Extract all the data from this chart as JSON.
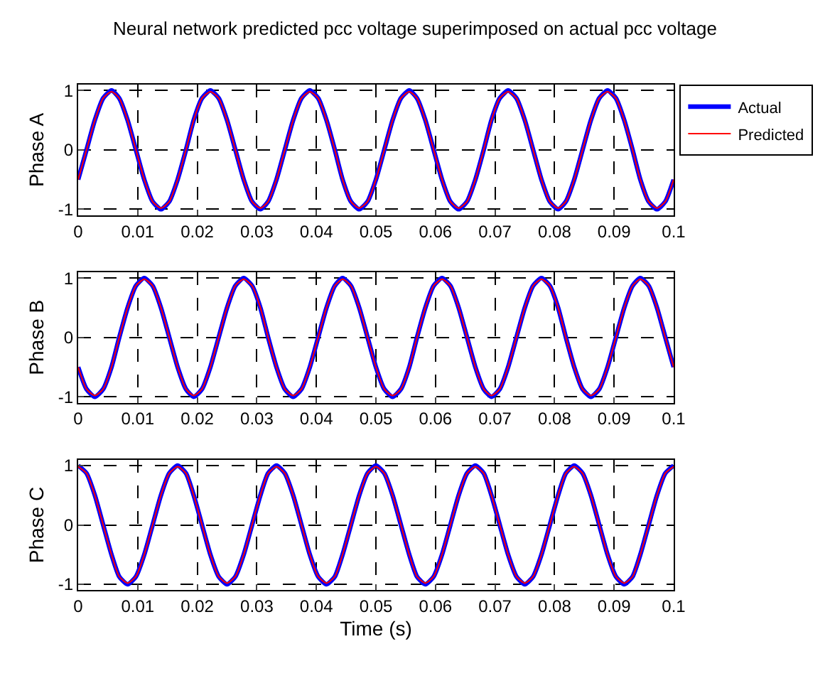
{
  "chart_data": [
    {
      "type": "line",
      "title": "Neural network predicted pcc voltage superimposed on actual pcc voltage",
      "ylabel": "Phase A",
      "xlim": [
        0,
        0.1
      ],
      "xticks": [
        0,
        0.01,
        0.02,
        0.03,
        0.04,
        0.05,
        0.06,
        0.07,
        0.08,
        0.09,
        0.1
      ],
      "ylim": [
        -1.1,
        1.1
      ],
      "yticks": [
        -1,
        0,
        1
      ],
      "grid": true,
      "legend": "top right",
      "x": [
        0,
        0.0014,
        0.0028,
        0.0042,
        0.0056,
        0.0069,
        0.0083,
        0.0097,
        0.0111,
        0.0125,
        0.0139,
        0.0153,
        0.0167,
        0.0181,
        0.0194,
        0.0208,
        0.0222,
        0.0236,
        0.025,
        0.0264,
        0.0278,
        0.0292,
        0.0306,
        0.0319,
        0.0333,
        0.0347,
        0.0361,
        0.0375,
        0.0389,
        0.0403,
        0.0417,
        0.0431,
        0.0444,
        0.0458,
        0.0472,
        0.0486,
        0.05,
        0.0514,
        0.0528,
        0.0542,
        0.0556,
        0.0569,
        0.0583,
        0.0597,
        0.0611,
        0.0625,
        0.0639,
        0.0653,
        0.0667,
        0.0681,
        0.0694,
        0.0708,
        0.0722,
        0.0736,
        0.075,
        0.0764,
        0.0778,
        0.0792,
        0.0806,
        0.0819,
        0.0833,
        0.0847,
        0.0861,
        0.0875,
        0.0889,
        0.0903,
        0.0917,
        0.0931,
        0.0944,
        0.0958,
        0.0972,
        0.0986,
        0.1
      ],
      "series": [
        {
          "name": "Actual",
          "color": "#0000ff",
          "values": [
            -0.5,
            0,
            0.5,
            0.87,
            1,
            0.87,
            0.5,
            0,
            -0.5,
            -0.87,
            -1,
            -0.87,
            -0.5,
            0,
            0.5,
            0.87,
            1,
            0.87,
            0.5,
            0,
            -0.5,
            -0.87,
            -1,
            -0.87,
            -0.5,
            0,
            0.5,
            0.87,
            1,
            0.87,
            0.5,
            0,
            -0.5,
            -0.87,
            -1,
            -0.87,
            -0.5,
            0,
            0.5,
            0.87,
            1,
            0.87,
            0.5,
            0,
            -0.5,
            -0.87,
            -1,
            -0.87,
            -0.5,
            0,
            0.5,
            0.87,
            1,
            0.87,
            0.5,
            0,
            -0.5,
            -0.87,
            -1,
            -0.87,
            -0.5,
            0,
            0.5,
            0.87,
            1,
            0.87,
            0.5,
            0,
            -0.5,
            -0.87,
            -1,
            -0.87,
            -0.5
          ]
        },
        {
          "name": "Predicted",
          "color": "#ff0000",
          "values": [
            -0.5,
            0,
            0.5,
            0.87,
            0.98,
            0.87,
            0.5,
            0,
            -0.5,
            -0.87,
            -0.98,
            -0.87,
            -0.5,
            0,
            0.5,
            0.87,
            0.98,
            0.87,
            0.5,
            0,
            -0.5,
            -0.87,
            -0.98,
            -0.87,
            -0.5,
            0,
            0.5,
            0.87,
            0.98,
            0.87,
            0.5,
            0,
            -0.5,
            -0.87,
            -0.98,
            -0.87,
            -0.5,
            0,
            0.5,
            0.87,
            0.98,
            0.87,
            0.5,
            0,
            -0.5,
            -0.87,
            -0.98,
            -0.87,
            -0.5,
            0,
            0.5,
            0.87,
            0.98,
            0.87,
            0.5,
            0,
            -0.5,
            -0.87,
            -0.98,
            -0.87,
            -0.5,
            0,
            0.5,
            0.87,
            0.98,
            0.87,
            0.5,
            0,
            -0.5,
            -0.87,
            -0.98,
            -0.87,
            -0.5
          ]
        }
      ]
    },
    {
      "type": "line",
      "ylabel": "Phase B",
      "xlim": [
        0,
        0.1
      ],
      "xticks": [
        0,
        0.01,
        0.02,
        0.03,
        0.04,
        0.05,
        0.06,
        0.07,
        0.08,
        0.09,
        0.1
      ],
      "ylim": [
        -1.1,
        1.1
      ],
      "yticks": [
        -1,
        0,
        1
      ],
      "grid": true,
      "x": [
        0,
        0.0014,
        0.0028,
        0.0042,
        0.0056,
        0.0069,
        0.0083,
        0.0097,
        0.0111,
        0.0125,
        0.0139,
        0.0153,
        0.0167,
        0.0181,
        0.0194,
        0.0208,
        0.0222,
        0.0236,
        0.025,
        0.0264,
        0.0278,
        0.0292,
        0.0306,
        0.0319,
        0.0333,
        0.0347,
        0.0361,
        0.0375,
        0.0389,
        0.0403,
        0.0417,
        0.0431,
        0.0444,
        0.0458,
        0.0472,
        0.0486,
        0.05,
        0.0514,
        0.0528,
        0.0542,
        0.0556,
        0.0569,
        0.0583,
        0.0597,
        0.0611,
        0.0625,
        0.0639,
        0.0653,
        0.0667,
        0.0681,
        0.0694,
        0.0708,
        0.0722,
        0.0736,
        0.075,
        0.0764,
        0.0778,
        0.0792,
        0.0806,
        0.0819,
        0.0833,
        0.0847,
        0.0861,
        0.0875,
        0.0889,
        0.0903,
        0.0917,
        0.0931,
        0.0944,
        0.0958,
        0.0972,
        0.0986,
        0.1
      ],
      "series": [
        {
          "color": "#0000ff",
          "values": [
            -0.5,
            -0.87,
            -1,
            -0.87,
            -0.5,
            0,
            0.5,
            0.87,
            1,
            0.87,
            0.5,
            0,
            -0.5,
            -0.87,
            -1,
            -0.87,
            -0.5,
            0,
            0.5,
            0.87,
            1,
            0.87,
            0.5,
            0,
            -0.5,
            -0.87,
            -1,
            -0.87,
            -0.5,
            0,
            0.5,
            0.87,
            1,
            0.87,
            0.5,
            0,
            -0.5,
            -0.87,
            -1,
            -0.87,
            -0.5,
            0,
            0.5,
            0.87,
            1,
            0.87,
            0.5,
            0,
            -0.5,
            -0.87,
            -1,
            -0.87,
            -0.5,
            0,
            0.5,
            0.87,
            1,
            0.87,
            0.5,
            0,
            -0.5,
            -0.87,
            -1,
            -0.87,
            -0.5,
            0,
            0.5,
            0.87,
            1,
            0.87,
            0.5,
            0,
            -0.5
          ]
        },
        {
          "color": "#ff0000",
          "values": [
            -0.5,
            -0.87,
            -0.98,
            -0.87,
            -0.5,
            0,
            0.5,
            0.87,
            0.98,
            0.87,
            0.5,
            0,
            -0.5,
            -0.87,
            -0.98,
            -0.87,
            -0.5,
            0,
            0.5,
            0.87,
            0.98,
            0.87,
            0.5,
            0,
            -0.5,
            -0.87,
            -0.98,
            -0.87,
            -0.5,
            0,
            0.5,
            0.87,
            0.98,
            0.87,
            0.5,
            0,
            -0.5,
            -0.87,
            -0.98,
            -0.87,
            -0.5,
            0,
            0.5,
            0.87,
            0.98,
            0.87,
            0.5,
            0,
            -0.5,
            -0.87,
            -0.98,
            -0.87,
            -0.5,
            0,
            0.5,
            0.87,
            0.98,
            0.87,
            0.5,
            0,
            -0.5,
            -0.87,
            -0.98,
            -0.87,
            -0.5,
            0,
            0.5,
            0.87,
            0.98,
            0.87,
            0.5,
            0,
            -0.5
          ]
        }
      ]
    },
    {
      "type": "line",
      "ylabel": "Phase C",
      "xlabel": "Time (s)",
      "xlim": [
        0,
        0.1
      ],
      "xticks": [
        0,
        0.01,
        0.02,
        0.03,
        0.04,
        0.05,
        0.06,
        0.07,
        0.08,
        0.09,
        0.1
      ],
      "ylim": [
        -1.1,
        1.1
      ],
      "yticks": [
        -1,
        0,
        1
      ],
      "grid": true,
      "x": [
        0,
        0.0014,
        0.0028,
        0.0042,
        0.0056,
        0.0069,
        0.0083,
        0.0097,
        0.0111,
        0.0125,
        0.0139,
        0.0153,
        0.0167,
        0.0181,
        0.0194,
        0.0208,
        0.0222,
        0.0236,
        0.025,
        0.0264,
        0.0278,
        0.0292,
        0.0306,
        0.0319,
        0.0333,
        0.0347,
        0.0361,
        0.0375,
        0.0389,
        0.0403,
        0.0417,
        0.0431,
        0.0444,
        0.0458,
        0.0472,
        0.0486,
        0.05,
        0.0514,
        0.0528,
        0.0542,
        0.0556,
        0.0569,
        0.0583,
        0.0597,
        0.0611,
        0.0625,
        0.0639,
        0.0653,
        0.0667,
        0.0681,
        0.0694,
        0.0708,
        0.0722,
        0.0736,
        0.075,
        0.0764,
        0.0778,
        0.0792,
        0.0806,
        0.0819,
        0.0833,
        0.0847,
        0.0861,
        0.0875,
        0.0889,
        0.0903,
        0.0917,
        0.0931,
        0.0944,
        0.0958,
        0.0972,
        0.0986,
        0.1
      ],
      "series": [
        {
          "color": "#0000ff",
          "values": [
            1,
            0.87,
            0.5,
            0,
            -0.5,
            -0.87,
            -1,
            -0.87,
            -0.5,
            0,
            0.5,
            0.87,
            1,
            0.87,
            0.5,
            0,
            -0.5,
            -0.87,
            -1,
            -0.87,
            -0.5,
            0,
            0.5,
            0.87,
            1,
            0.87,
            0.5,
            0,
            -0.5,
            -0.87,
            -1,
            -0.87,
            -0.5,
            0,
            0.5,
            0.87,
            1,
            0.87,
            0.5,
            0,
            -0.5,
            -0.87,
            -1,
            -0.87,
            -0.5,
            0,
            0.5,
            0.87,
            1,
            0.87,
            0.5,
            0,
            -0.5,
            -0.87,
            -1,
            -0.87,
            -0.5,
            0,
            0.5,
            0.87,
            1,
            0.87,
            0.5,
            0,
            -0.5,
            -0.87,
            -1,
            -0.87,
            -0.5,
            0,
            0.5,
            0.87,
            1
          ]
        },
        {
          "color": "#ff0000",
          "values": [
            0.98,
            0.87,
            0.5,
            0,
            -0.5,
            -0.87,
            -0.98,
            -0.87,
            -0.5,
            0,
            0.5,
            0.87,
            0.98,
            0.87,
            0.5,
            0,
            -0.5,
            -0.87,
            -0.98,
            -0.87,
            -0.5,
            0,
            0.5,
            0.87,
            0.98,
            0.87,
            0.5,
            0,
            -0.5,
            -0.87,
            -0.98,
            -0.87,
            -0.5,
            0,
            0.5,
            0.87,
            0.98,
            0.87,
            0.5,
            0,
            -0.5,
            -0.87,
            -0.98,
            -0.87,
            -0.5,
            0,
            0.5,
            0.87,
            0.98,
            0.87,
            0.5,
            0,
            -0.5,
            -0.87,
            -0.98,
            -0.87,
            -0.5,
            0,
            0.5,
            0.87,
            0.98,
            0.87,
            0.5,
            0,
            -0.5,
            -0.87,
            -0.98,
            -0.87,
            -0.5,
            0,
            0.5,
            0.87,
            0.98
          ]
        }
      ]
    }
  ]
}
